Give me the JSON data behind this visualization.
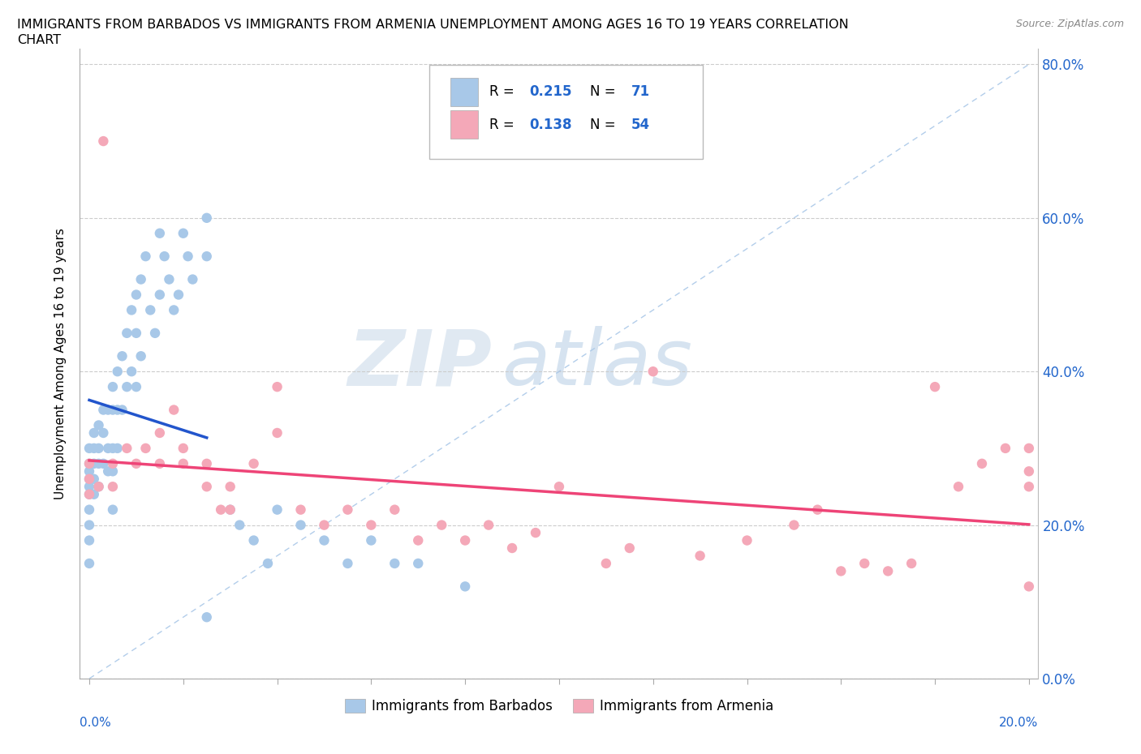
{
  "title_line1": "IMMIGRANTS FROM BARBADOS VS IMMIGRANTS FROM ARMENIA UNEMPLOYMENT AMONG AGES 16 TO 19 YEARS CORRELATION",
  "title_line2": "CHART",
  "source": "Source: ZipAtlas.com",
  "ylabel": "Unemployment Among Ages 16 to 19 years",
  "barbados_R": 0.215,
  "barbados_N": 71,
  "armenia_R": 0.138,
  "armenia_N": 54,
  "barbados_color": "#a8c8e8",
  "armenia_color": "#f4a8b8",
  "barbados_line_color": "#2255cc",
  "armenia_line_color": "#ee4477",
  "diagonal_color": "#aac8e8",
  "watermark_color": "#ccdded",
  "x_max": 0.2,
  "y_max": 0.8,
  "yticks": [
    0.0,
    0.2,
    0.4,
    0.6,
    0.8
  ],
  "ytick_labels": [
    "0.0%",
    "20.0%",
    "40.0%",
    "60.0%",
    "80.0%"
  ],
  "barbados_x": [
    0.0,
    0.0,
    0.0,
    0.0,
    0.0,
    0.0,
    0.0,
    0.0,
    0.0,
    0.0,
    0.001,
    0.001,
    0.001,
    0.001,
    0.001,
    0.002,
    0.002,
    0.002,
    0.002,
    0.003,
    0.003,
    0.003,
    0.004,
    0.004,
    0.004,
    0.005,
    0.005,
    0.005,
    0.005,
    0.006,
    0.006,
    0.006,
    0.007,
    0.007,
    0.008,
    0.008,
    0.009,
    0.009,
    0.01,
    0.01,
    0.01,
    0.011,
    0.011,
    0.012,
    0.013,
    0.014,
    0.015,
    0.015,
    0.016,
    0.017,
    0.018,
    0.019,
    0.02,
    0.021,
    0.022,
    0.025,
    0.025,
    0.03,
    0.032,
    0.035,
    0.038,
    0.04,
    0.045,
    0.05,
    0.055,
    0.06,
    0.065,
    0.07,
    0.08,
    0.025,
    0.005
  ],
  "barbados_y": [
    0.3,
    0.28,
    0.27,
    0.26,
    0.25,
    0.24,
    0.22,
    0.2,
    0.18,
    0.15,
    0.32,
    0.3,
    0.28,
    0.26,
    0.24,
    0.33,
    0.3,
    0.28,
    0.25,
    0.35,
    0.32,
    0.28,
    0.35,
    0.3,
    0.27,
    0.38,
    0.35,
    0.3,
    0.27,
    0.4,
    0.35,
    0.3,
    0.42,
    0.35,
    0.45,
    0.38,
    0.48,
    0.4,
    0.5,
    0.45,
    0.38,
    0.52,
    0.42,
    0.55,
    0.48,
    0.45,
    0.58,
    0.5,
    0.55,
    0.52,
    0.48,
    0.5,
    0.58,
    0.55,
    0.52,
    0.6,
    0.55,
    0.22,
    0.2,
    0.18,
    0.15,
    0.22,
    0.2,
    0.18,
    0.15,
    0.18,
    0.15,
    0.15,
    0.12,
    0.08,
    0.22
  ],
  "armenia_x": [
    0.0,
    0.0,
    0.0,
    0.002,
    0.003,
    0.005,
    0.005,
    0.008,
    0.01,
    0.012,
    0.015,
    0.015,
    0.018,
    0.02,
    0.02,
    0.025,
    0.025,
    0.028,
    0.03,
    0.03,
    0.035,
    0.04,
    0.04,
    0.045,
    0.05,
    0.055,
    0.06,
    0.065,
    0.07,
    0.075,
    0.08,
    0.085,
    0.09,
    0.095,
    0.1,
    0.11,
    0.115,
    0.12,
    0.13,
    0.14,
    0.15,
    0.155,
    0.16,
    0.165,
    0.17,
    0.175,
    0.18,
    0.185,
    0.19,
    0.195,
    0.2,
    0.2,
    0.2,
    0.2
  ],
  "armenia_y": [
    0.28,
    0.26,
    0.24,
    0.25,
    0.7,
    0.28,
    0.25,
    0.3,
    0.28,
    0.3,
    0.32,
    0.28,
    0.35,
    0.3,
    0.28,
    0.25,
    0.28,
    0.22,
    0.25,
    0.22,
    0.28,
    0.38,
    0.32,
    0.22,
    0.2,
    0.22,
    0.2,
    0.22,
    0.18,
    0.2,
    0.18,
    0.2,
    0.17,
    0.19,
    0.25,
    0.15,
    0.17,
    0.4,
    0.16,
    0.18,
    0.2,
    0.22,
    0.14,
    0.15,
    0.14,
    0.15,
    0.38,
    0.25,
    0.28,
    0.3,
    0.12,
    0.25,
    0.27,
    0.3
  ]
}
